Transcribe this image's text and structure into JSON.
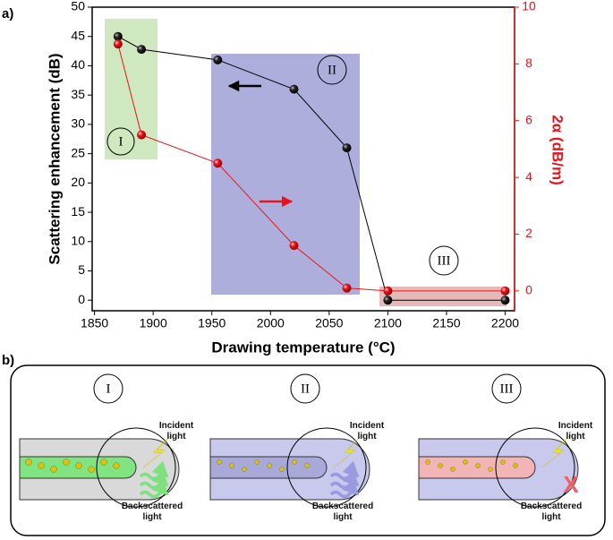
{
  "labels": {
    "a": "a)",
    "b": "b)"
  },
  "chart_data": {
    "type": "line",
    "xlabel": "Drawing temperature (°C)",
    "ylabel": "Scattering enhancement (dB)",
    "y2label": "2α (dB/m)",
    "x": [
      1870,
      1890,
      1955,
      2020,
      2065,
      2100,
      2200
    ],
    "series": [
      {
        "color": "#000000",
        "values": [
          45,
          42.8,
          41,
          36,
          26,
          0,
          0
        ]
      },
      {
        "color": "#e8141c",
        "axis": "y2",
        "values": [
          8.7,
          5.5,
          4.5,
          1.6,
          0.1,
          0,
          0
        ]
      }
    ],
    "xlim": [
      1848,
      2208
    ],
    "xticks": [
      1850,
      1900,
      1950,
      2000,
      2050,
      2100,
      2150,
      2200
    ],
    "ylim": [
      -1.8,
      50
    ],
    "yticks": [
      0,
      5,
      10,
      15,
      20,
      25,
      30,
      35,
      40,
      45,
      50
    ],
    "y2lim": [
      -0.7,
      10
    ],
    "y2ticks": [
      0,
      2,
      4,
      6,
      8,
      10
    ],
    "annotations": [
      "I",
      "II",
      "III"
    ]
  },
  "diagram": {
    "panels": [
      {
        "label": "I",
        "incident": "Incident light",
        "backscattered": "Backscattered light"
      },
      {
        "label": "II",
        "incident": "Incident light",
        "backscattered": "Backscattered light"
      },
      {
        "label": "III",
        "incident": "Incident light",
        "backscattered": "Backscattered light",
        "mark": "X"
      }
    ]
  }
}
